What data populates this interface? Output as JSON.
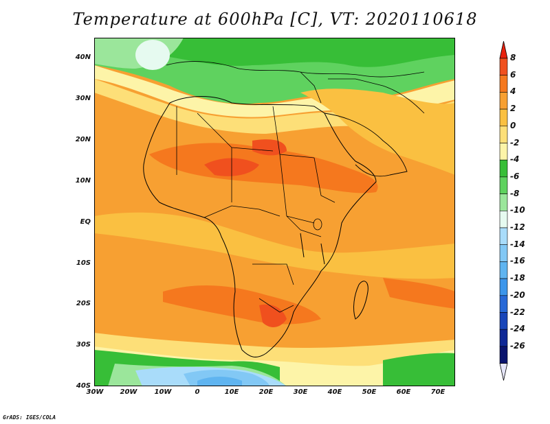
{
  "title": "Temperature at 600hPa [C], VT: 2020110618",
  "credit": "GrADS: IGES/COLA",
  "map": {
    "variable": "Temperature at 600hPa",
    "units": "C",
    "valid_time": "2020110618",
    "lon_range": [
      -30,
      75
    ],
    "lat_range": [
      -40,
      45
    ],
    "lat_labels": [
      "40N",
      "30N",
      "20N",
      "10N",
      "EQ",
      "10S",
      "20S",
      "30S",
      "40S"
    ],
    "lon_labels": [
      "30W",
      "20W",
      "10W",
      "0",
      "10E",
      "20E",
      "30E",
      "40E",
      "50E",
      "60E",
      "70E"
    ]
  },
  "colorbar": {
    "labels": [
      "8",
      "6",
      "4",
      "2",
      "0",
      "-2",
      "-4",
      "-6",
      "-8",
      "-10",
      "-12",
      "-14",
      "-16",
      "-18",
      "-20",
      "-22",
      "-24",
      "-26"
    ],
    "colors": [
      "#e8220e",
      "#f0501e",
      "#f5781e",
      "#f7a032",
      "#fac041",
      "#fddf78",
      "#fdf4a8",
      "#37be37",
      "#5fd25f",
      "#9be69b",
      "#e6faf0",
      "#a9dcfa",
      "#82c8f5",
      "#5fb4f0",
      "#3c96eb",
      "#2869d7",
      "#1946b9",
      "#0f2896",
      "#0a146e",
      "#e6e6fa"
    ]
  }
}
